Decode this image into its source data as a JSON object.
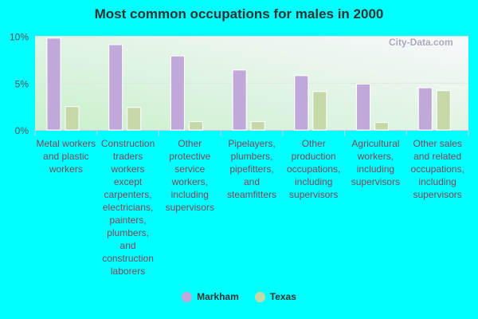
{
  "chart_data": {
    "type": "bar",
    "title": "Most common occupations for males in 2000",
    "categories": [
      "Metal workers and plastic workers",
      "Construction traders workers except carpenters, electricians, painters, plumbers, and construction laborers",
      "Other protective service workers, including supervisors",
      "Pipelayers, plumbers, pipefitters, and steamfitters",
      "Other production occupations, including supervisors",
      "Agricultural workers, including supervisors",
      "Other sales and related occupations, including supervisors"
    ],
    "series": [
      {
        "name": "Markham",
        "color": "#C0A8D8",
        "values": [
          9.8,
          9.1,
          7.9,
          6.4,
          5.8,
          4.9,
          4.5
        ]
      },
      {
        "name": "Texas",
        "color": "#C5D9A8",
        "values": [
          2.5,
          2.4,
          0.9,
          0.9,
          4.1,
          0.8,
          4.2
        ]
      }
    ],
    "yticks": [
      "0%",
      "5%",
      "10%"
    ],
    "ylim": [
      0,
      10
    ],
    "grid": true,
    "legend": "bottom",
    "watermark": "City-Data.com"
  }
}
